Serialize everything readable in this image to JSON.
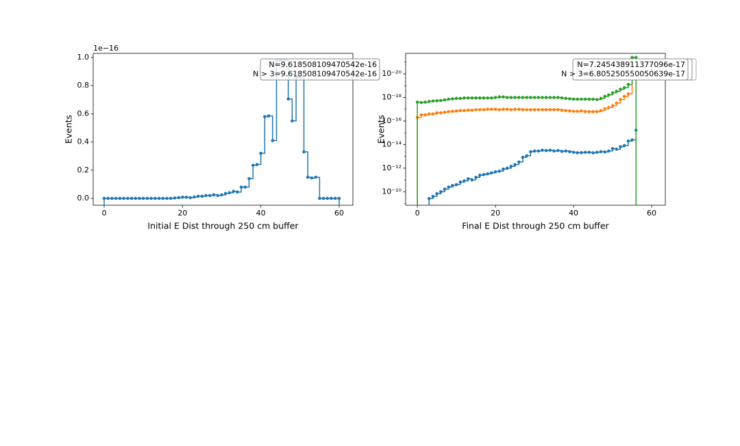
{
  "chart_data": [
    {
      "type": "step",
      "x_label": "Initial E Dist through 250 cm buffer",
      "y_label": "Events",
      "y_offset_label": "1e−16",
      "xlim": [
        -2.8,
        63.5
      ],
      "ylim": [
        -0.0485,
        1.029
      ],
      "xticks": [
        0,
        20,
        40,
        60
      ],
      "yticks": [
        {
          "value": 0,
          "label": "0.0"
        },
        {
          "value": 0.2,
          "label": "0.2"
        },
        {
          "value": 0.4,
          "label": "0.4"
        },
        {
          "value": 0.6,
          "label": "0.6"
        },
        {
          "value": 0.8,
          "label": "0.8"
        },
        {
          "value": 1.0,
          "label": "1.0"
        }
      ],
      "x": [
        0,
        1,
        2,
        3,
        4,
        5,
        6,
        7,
        8,
        9,
        10,
        11,
        12,
        13,
        14,
        15,
        16,
        17,
        18,
        19,
        20,
        21,
        22,
        23,
        24,
        25,
        26,
        27,
        28,
        29,
        30,
        31,
        32,
        33,
        34,
        35,
        36,
        37,
        38,
        39,
        40,
        41,
        42,
        43,
        44,
        45,
        46,
        47,
        48,
        49,
        50,
        51,
        52,
        53,
        54,
        55,
        56,
        57,
        58,
        59,
        60
      ],
      "series": [
        {
          "color": "#1f77b4",
          "values": [
            0,
            0,
            0,
            0,
            0,
            0,
            0,
            0,
            0,
            0,
            0,
            0,
            0,
            0,
            0,
            0,
            0,
            0,
            0.003,
            0.005,
            0.008,
            0.008,
            0.005,
            0.01,
            0.015,
            0.015,
            0.02,
            0.02,
            0.025,
            0.02,
            0.025,
            0.035,
            0.04,
            0.05,
            0.045,
            0.08,
            0.08,
            0.14,
            0.235,
            0.24,
            0.32,
            0.58,
            0.585,
            0.41,
            0.98,
            0.98,
            0.98,
            0.705,
            0.55,
            0.86,
            0.86,
            0.33,
            0.15,
            0.145,
            0.15,
            0,
            0,
            0,
            0,
            0,
            0
          ]
        }
      ],
      "annotations": [
        [
          "N=9.618508109470542e-16",
          "N > 3=9.618508109470542e-16"
        ]
      ]
    },
    {
      "type": "step",
      "x_label": "Final E Dist through 250 cm buffer",
      "y_label": "Events",
      "log_y": true,
      "xlim": [
        -3.0,
        63.5
      ],
      "ylim": [
        1.4e-09,
        1.8e-22
      ],
      "xticks": [
        0,
        20,
        40,
        60
      ],
      "yticks": [
        {
          "value": 1e-10,
          "label": "10⁻¹⁰"
        },
        {
          "value": 1e-12,
          "label": "10⁻¹²"
        },
        {
          "value": 1e-14,
          "label": "10⁻¹⁴"
        },
        {
          "value": 1e-16,
          "label": "10⁻¹⁶"
        },
        {
          "value": 1e-18,
          "label": "10⁻¹⁸"
        },
        {
          "value": 1e-20,
          "label": "10⁻²⁰"
        }
      ],
      "x": [
        0,
        1,
        2,
        3,
        4,
        5,
        6,
        7,
        8,
        9,
        10,
        11,
        12,
        13,
        14,
        15,
        16,
        17,
        18,
        19,
        20,
        21,
        22,
        23,
        24,
        25,
        26,
        27,
        28,
        29,
        30,
        31,
        32,
        33,
        34,
        35,
        36,
        37,
        38,
        39,
        40,
        41,
        42,
        43,
        44,
        45,
        46,
        47,
        48,
        49,
        50,
        51,
        52,
        53,
        54,
        55,
        56
      ],
      "series": [
        {
          "color": "#1f77b4",
          "values": [
            null,
            null,
            null,
            3.8e-10,
            2.5e-10,
            1.5e-10,
            1e-10,
            6e-11,
            4e-11,
            3e-11,
            2.5e-11,
            1.5e-11,
            1.2e-11,
            8e-12,
            1e-11,
            6e-12,
            4e-12,
            3.5e-12,
            3e-12,
            2.5e-12,
            2e-12,
            1.8e-12,
            1.2e-12,
            1e-12,
            7e-13,
            5e-13,
            3e-13,
            1.2e-13,
            9e-14,
            4e-14,
            3.5e-14,
            3.5e-14,
            3e-14,
            3.2e-14,
            3e-14,
            3.5e-14,
            3.2e-14,
            3.8e-14,
            3.5e-14,
            4e-14,
            4.5e-14,
            5e-14,
            4.8e-14,
            4.5e-14,
            4.5e-14,
            5e-14,
            4.5e-14,
            4e-14,
            4.2e-14,
            3.5e-14,
            2.2e-14,
            2.5e-14,
            1.5e-14,
            1.2e-14,
            5e-15,
            4e-15,
            6e-16
          ]
        },
        {
          "color": "#ff7f0e",
          "values": [
            5e-17,
            3e-17,
            3e-17,
            2.5e-17,
            2.5e-17,
            2e-17,
            2e-17,
            1.8e-17,
            1.6e-17,
            1.5e-17,
            1.4e-17,
            1.3e-17,
            1.3e-17,
            1.2e-17,
            1.2e-17,
            1.1e-17,
            1.1e-17,
            1.1e-17,
            1e-17,
            1e-17,
            1e-17,
            1.1e-17,
            1e-17,
            1e-17,
            1.1e-17,
            1e-17,
            1e-17,
            1.1e-17,
            1.1e-17,
            1.1e-17,
            1.1e-17,
            1.1e-17,
            1.1e-17,
            1.1e-17,
            1.1e-17,
            1.1e-17,
            1.1e-17,
            1.2e-17,
            1.3e-17,
            1.4e-17,
            1.5e-17,
            1.5e-17,
            1.4e-17,
            1.6e-17,
            1.6e-17,
            1.6e-17,
            1.6e-17,
            1.3e-17,
            9e-18,
            7e-18,
            5e-18,
            3e-18,
            1.5e-18,
            8e-19,
            5e-19,
            1e-20,
            1e-20
          ]
        },
        {
          "color": "#2ca02c",
          "values": [
            2.5e-18,
            2.7e-18,
            2.5e-18,
            2.2e-18,
            2e-18,
            1.9e-18,
            1.8e-18,
            1.6e-18,
            1.4e-18,
            1.3e-18,
            1.2e-18,
            1.2e-18,
            1.1e-18,
            1.1e-18,
            1.1e-18,
            1.1e-18,
            1.1e-18,
            1.1e-18,
            1.1e-18,
            1.1e-18,
            1e-18,
            9e-19,
            9e-19,
            1e-18,
            1e-18,
            1e-18,
            1e-18,
            1e-18,
            1e-18,
            1e-18,
            1e-18,
            1e-18,
            1e-18,
            1e-18,
            1e-18,
            1e-18,
            1e-18,
            1.1e-18,
            1.2e-18,
            1.3e-18,
            1.4e-18,
            1.4e-18,
            1.4e-18,
            1.4e-18,
            1.4e-18,
            1.4e-18,
            1.5e-18,
            1.2e-18,
            8e-19,
            6e-19,
            4e-19,
            3e-19,
            2e-19,
            1.5e-19,
            8e-20,
            4e-22,
            4e-22
          ]
        }
      ],
      "annotations": [
        [
          "N=7.245438911377096e-17",
          "N > 3=6.805250550050639e-17"
        ]
      ]
    }
  ]
}
